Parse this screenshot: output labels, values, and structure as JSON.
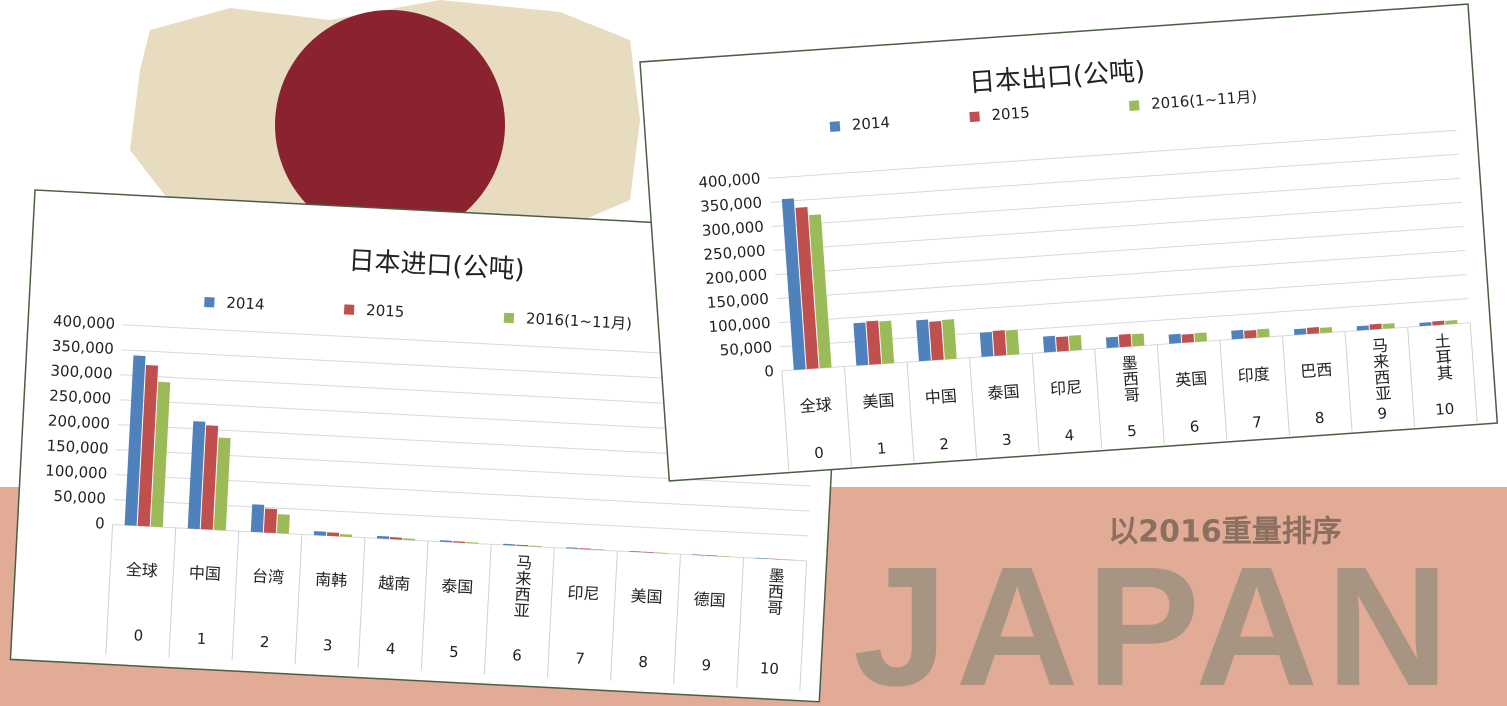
{
  "background_text": {
    "brand": "JAPAN",
    "subtitle": "以2016重量排序"
  },
  "chart_data": [
    {
      "type": "bar",
      "title": "日本进口(公吨)",
      "categories": [
        "全球",
        "中国",
        "台湾",
        "南韩",
        "越南",
        "泰国",
        "马来西亚",
        "印尼",
        "美国",
        "德国",
        "墨西哥"
      ],
      "category_numbers": [
        0,
        1,
        2,
        3,
        4,
        5,
        6,
        7,
        8,
        9,
        10
      ],
      "series": [
        {
          "name": "2014",
          "color": "#4f81bd",
          "values": [
            340000,
            215000,
            55000,
            8000,
            5000,
            3000,
            2500,
            2000,
            1500,
            1200,
            1000
          ]
        },
        {
          "name": "2015",
          "color": "#c0504d",
          "values": [
            322000,
            208000,
            48000,
            7000,
            4000,
            2500,
            2000,
            1800,
            1400,
            1100,
            900
          ]
        },
        {
          "name": "2016(1~11月)",
          "color": "#9bbb59",
          "values": [
            290000,
            185000,
            38000,
            5000,
            3000,
            2000,
            1800,
            1500,
            1300,
            1000,
            800
          ]
        }
      ],
      "ylim": [
        0,
        400000
      ],
      "yticks": [
        0,
        {
          "value": 50000,
          "label": "50,000"
        },
        {
          "value": 100000,
          "label": "100,000"
        },
        {
          "value": 150000,
          "label": "150,000"
        },
        {
          "value": 200000,
          "label": "200,000"
        },
        {
          "value": 250000,
          "label": "250,000"
        },
        {
          "value": 300000,
          "label": "300,000"
        },
        {
          "value": 350000,
          "label": "350,000"
        },
        {
          "value": 400000,
          "label": "400,000"
        }
      ],
      "grid": true,
      "legend": "top"
    },
    {
      "type": "bar",
      "title": "日本出口(公吨)",
      "categories": [
        "全球",
        "美国",
        "中国",
        "泰国",
        "印尼",
        "墨西哥",
        "英国",
        "印度",
        "巴西",
        "马来西亚",
        "土耳其"
      ],
      "category_numbers": [
        0,
        1,
        2,
        3,
        4,
        5,
        6,
        7,
        8,
        9,
        10
      ],
      "series": [
        {
          "name": "2014",
          "color": "#4f81bd",
          "values": [
            355000,
            88000,
            85000,
            50000,
            33000,
            22000,
            19000,
            18000,
            12000,
            9000,
            7000
          ]
        },
        {
          "name": "2015",
          "color": "#c0504d",
          "values": [
            335000,
            90000,
            80000,
            52000,
            30000,
            26000,
            17000,
            16000,
            13000,
            11000,
            8000
          ]
        },
        {
          "name": "2016(1~11月)",
          "color": "#9bbb59",
          "values": [
            318000,
            88000,
            82000,
            51000,
            31000,
            25000,
            18000,
            17000,
            11000,
            10000,
            7500
          ]
        }
      ],
      "ylim": [
        0,
        400000
      ],
      "yticks": [
        0,
        {
          "value": 50000,
          "label": "50,000"
        },
        {
          "value": 100000,
          "label": "100,000"
        },
        {
          "value": 150000,
          "label": "150,000"
        },
        {
          "value": 200000,
          "label": "200,000"
        },
        {
          "value": 250000,
          "label": "250,000"
        },
        {
          "value": 300000,
          "label": "300,000"
        },
        {
          "value": 350000,
          "label": "350,000"
        },
        {
          "value": 400000,
          "label": "400,000"
        }
      ],
      "grid": true,
      "legend": "top"
    }
  ]
}
